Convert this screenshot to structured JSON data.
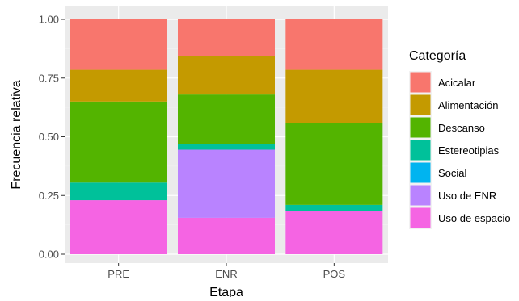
{
  "chart_data": {
    "type": "bar",
    "stacked": true,
    "normalized": true,
    "categories": [
      "PRE",
      "ENR",
      "POS"
    ],
    "xlabel": "Etapa",
    "ylabel": "Frecuencia relativa",
    "ylim": [
      0,
      1
    ],
    "yticks": [
      "0.00",
      "0.25",
      "0.50",
      "0.75",
      "1.00"
    ],
    "grid": true,
    "legend_title": "Categoría",
    "legend_position": "right",
    "series": [
      {
        "name": "Uso de espacio",
        "color": "#F564E3",
        "values": [
          0.23,
          0.155,
          0.185
        ]
      },
      {
        "name": "Uso de ENR",
        "color": "#B983FF",
        "values": [
          0.0,
          0.29,
          0.0
        ]
      },
      {
        "name": "Social",
        "color": "#00B4F0",
        "values": [
          0.0,
          0.0,
          0.0
        ]
      },
      {
        "name": "Estereotipias",
        "color": "#00C19A",
        "values": [
          0.075,
          0.025,
          0.025
        ]
      },
      {
        "name": "Descanso",
        "color": "#53B400",
        "values": [
          0.345,
          0.21,
          0.35
        ]
      },
      {
        "name": "Alimentación",
        "color": "#C49A00",
        "values": [
          0.135,
          0.165,
          0.225
        ]
      },
      {
        "name": "Acicalar",
        "color": "#F8766D",
        "values": [
          0.215,
          0.155,
          0.215
        ]
      }
    ],
    "legend_order": [
      "Acicalar",
      "Alimentación",
      "Descanso",
      "Estereotipias",
      "Social",
      "Uso de ENR",
      "Uso de espacio"
    ]
  }
}
